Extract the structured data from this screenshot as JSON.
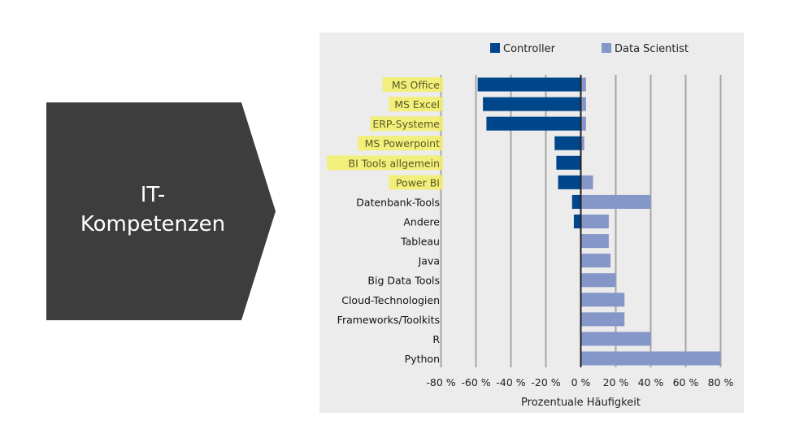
{
  "slide": {
    "title_line1": "IT-",
    "title_line2": "Kompetenzen",
    "shape_color": "#3d3d3d"
  },
  "chart_data": {
    "type": "bar",
    "orientation": "horizontal-diverging",
    "categories": [
      "MS Office",
      "MS Excel",
      "ERP-Systeme",
      "MS Powerpoint",
      "BI Tools allgemein",
      "Power BI",
      "Datenbank-Tools",
      "Andere",
      "Tableau",
      "Java",
      "Big Data Tools",
      "Cloud-Technologien",
      "Frameworks/Toolkits",
      "R",
      "Python"
    ],
    "highlighted_categories": [
      "MS Office",
      "MS Excel",
      "ERP-Systeme",
      "MS Powerpoint",
      "BI Tools allgemein",
      "Power BI"
    ],
    "series": [
      {
        "name": "Controller",
        "color": "#00468b",
        "values": [
          59,
          56,
          54,
          15,
          14,
          13,
          5,
          4,
          0,
          0,
          0,
          0,
          0,
          0,
          0
        ],
        "direction": "negative"
      },
      {
        "name": "Data Scientist",
        "color": "#8596c8",
        "values": [
          3,
          3,
          3,
          2,
          0,
          7,
          40,
          16,
          16,
          17,
          20,
          25,
          25,
          40,
          80
        ],
        "direction": "positive"
      }
    ],
    "xlabel": "Prozentuale Häufigkeit",
    "xlim": [
      -80,
      80
    ],
    "xticks": [
      -80,
      -60,
      -40,
      -20,
      0,
      20,
      40,
      60,
      80
    ],
    "xtick_labels": [
      "-80 %",
      "-60 %",
      "-40 %",
      "-20 %",
      "0 %",
      "20 %",
      "40 %",
      "60 %",
      "80 %"
    ],
    "grid": true,
    "legend_position": "top",
    "highlight_color": "#f3f06a"
  }
}
